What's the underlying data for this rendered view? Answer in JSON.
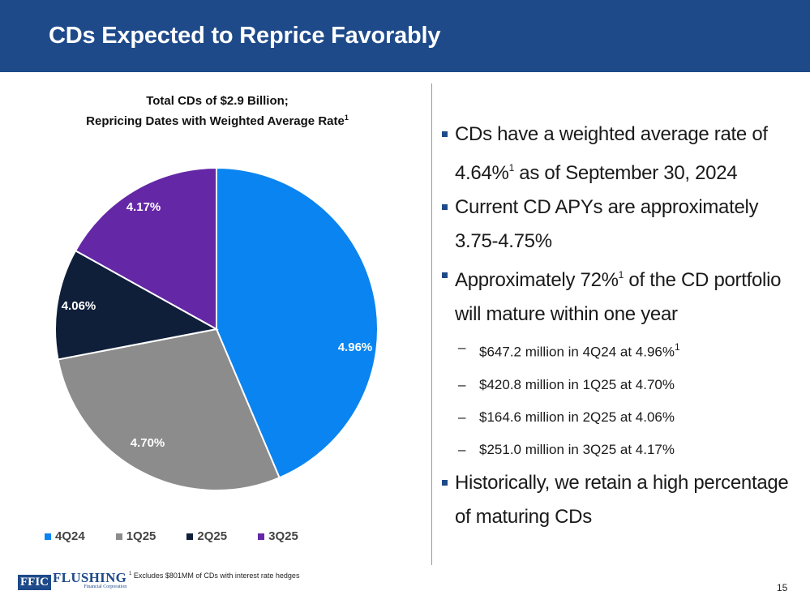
{
  "header": {
    "title": "CDs Expected to Reprice Favorably"
  },
  "chart_data": {
    "type": "pie",
    "title_line1": "Total CDs of $2.9 Billion;",
    "title_line2": "Repricing Dates with Weighted Average Rate",
    "title_footnote_mark": "1",
    "slices": [
      {
        "name": "4Q24",
        "value": 647.2,
        "label": "4.96%",
        "color": "#0a84f0"
      },
      {
        "name": "1Q25",
        "value": 420.8,
        "label": "4.70%",
        "color": "#8c8c8c"
      },
      {
        "name": "2Q25",
        "value": 164.6,
        "label": "4.06%",
        "color": "#0f1f3a"
      },
      {
        "name": "3Q25",
        "value": 251.0,
        "label": "4.17%",
        "color": "#6427a6"
      }
    ],
    "legend": [
      "4Q24",
      "1Q25",
      "2Q25",
      "3Q25"
    ],
    "legend_placement": "bottom"
  },
  "bullets": {
    "b1_text_a": "CDs have a weighted average rate of",
    "b1_text_b": "4.64%",
    "b1_sup": "1",
    "b1_text_c": " as of September 30, 2024",
    "b2_text_a": "Current CD APYs are approximately",
    "b2_text_b": "3.75-4.75%",
    "b3_text_a": "Approximately 72%",
    "b3_sup": "1",
    "b3_text_b": " of the CD portfolio",
    "b3_text_c": "will mature within one year",
    "sub1": "$647.2 million in 4Q24 at 4.96%",
    "sub1_sup": "1",
    "sub2": "$420.8 million in 1Q25 at 4.70%",
    "sub3": "$164.6 million in 2Q25 at 4.06%",
    "sub4": "$251.0 million in 3Q25 at 4.17%",
    "b4_text_a": "Historically, we retain a high percentage",
    "b4_text_b": "of maturing CDs",
    "dash": "–"
  },
  "footer": {
    "logo_box": "FFIC",
    "logo_name": "FLUSHING",
    "logo_sub": "Financial Corporation",
    "footnote_mark": "1",
    "footnote": " Excludes $801MM of CDs with interest rate hedges",
    "page_number": "15"
  }
}
